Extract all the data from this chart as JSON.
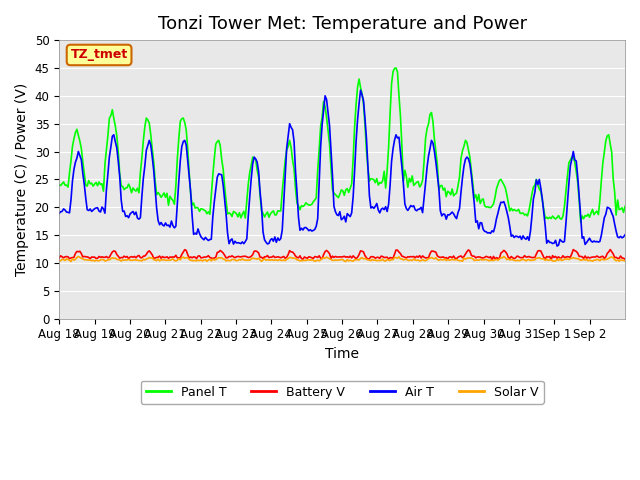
{
  "title": "Tonzi Tower Met: Temperature and Power",
  "xlabel": "Time",
  "ylabel": "Temperature (C) / Power (V)",
  "ylim": [
    0,
    50
  ],
  "yticks": [
    0,
    5,
    10,
    15,
    20,
    25,
    30,
    35,
    40,
    45,
    50
  ],
  "xtick_labels": [
    "Aug 18",
    "Aug 19",
    "Aug 20",
    "Aug 21",
    "Aug 22",
    "Aug 23",
    "Aug 24",
    "Aug 25",
    "Aug 26",
    "Aug 27",
    "Aug 28",
    "Aug 29",
    "Aug 30",
    "Aug 31",
    "Sep 1",
    "Sep 2"
  ],
  "watermark": "TZ_tmet",
  "colors": {
    "panel_t": "#00FF00",
    "battery_v": "#FF0000",
    "air_t": "#0000FF",
    "solar_v": "#FFA500"
  },
  "bg_color": "#E8E8E8",
  "legend_labels": [
    "Panel T",
    "Battery V",
    "Air T",
    "Solar V"
  ],
  "title_fontsize": 13,
  "axis_fontsize": 10,
  "tick_fontsize": 8.5,
  "daily_peaks_panel": [
    34,
    37.5,
    36,
    36,
    32,
    29,
    32,
    39,
    43,
    45,
    37,
    32,
    25,
    25,
    29,
    33
  ],
  "daily_peaks_air": [
    30,
    33,
    32,
    32,
    26,
    29,
    35,
    40,
    41,
    33,
    32,
    29,
    21,
    25,
    30,
    20
  ]
}
